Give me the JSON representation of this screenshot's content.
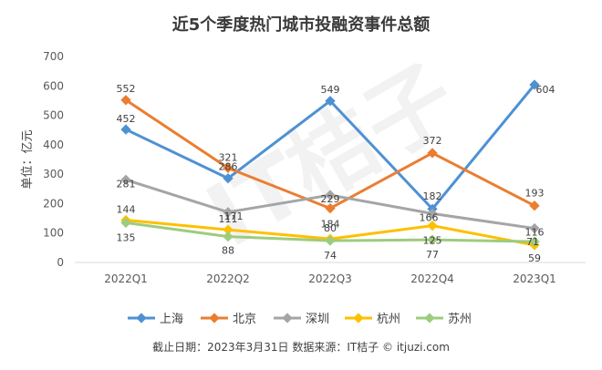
{
  "chart_data": {
    "type": "line",
    "title": "近5个季度热门城市投融资事件总额",
    "ylabel": "单位：亿元",
    "xlabel": "",
    "ylim": [
      0,
      700
    ],
    "yticks": [
      0,
      100,
      200,
      300,
      400,
      500,
      600,
      700
    ],
    "categories": [
      "2022Q1",
      "2022Q2",
      "2022Q3",
      "2022Q4",
      "2023Q1"
    ],
    "series": [
      {
        "name": "上海",
        "color": "#4e91d3",
        "values": [
          452,
          286,
          549,
          182,
          604
        ]
      },
      {
        "name": "北京",
        "color": "#eb7d31",
        "values": [
          552,
          321,
          184,
          372,
          193
        ]
      },
      {
        "name": "深圳",
        "color": "#a5a5a5",
        "values": [
          281,
          171,
          229,
          166,
          116
        ]
      },
      {
        "name": "杭州",
        "color": "#fdc000",
        "values": [
          144,
          111,
          80,
          125,
          59
        ]
      },
      {
        "name": "苏州",
        "color": "#9dcc7d",
        "values": [
          135,
          88,
          74,
          77,
          71
        ]
      }
    ],
    "grid": false,
    "legend": "bottom"
  },
  "footer": {
    "text": "截止日期：2023年3月31日    数据来源：IT桔子 © itjuzi.com"
  },
  "watermark": {
    "text": "IT桔子"
  }
}
